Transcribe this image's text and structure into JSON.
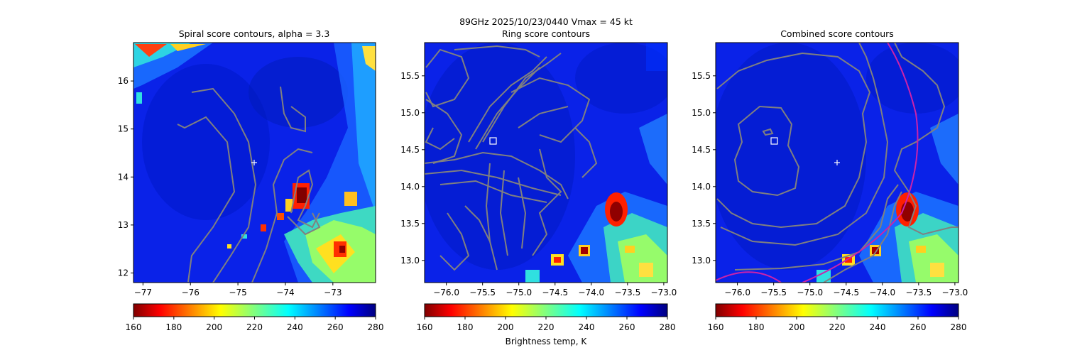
{
  "suptitle_line1": "89GHz  2025/10/23/0440    Vmax = 45 kt",
  "colorbar_label": "Brightness temp, K",
  "colorbar_ticks": [
    "160",
    "180",
    "200",
    "220",
    "240",
    "260",
    "280"
  ],
  "colors": {
    "colormap": "jet_r",
    "contour": "#808080",
    "fit_circle": "#cc22aa",
    "markers": "#ffffff"
  },
  "chart_data": [
    {
      "type": "heatmap",
      "title": "Spiral score contours, alpha =  3.3",
      "xlabel": "",
      "ylabel": "",
      "x_ticks": [
        "−77",
        "−76",
        "−75",
        "−74",
        "−73"
      ],
      "y_ticks": [
        "12",
        "13",
        "14",
        "15",
        "16"
      ],
      "xlim": [
        -77.2,
        -72.1
      ],
      "ylim": [
        11.8,
        16.8
      ],
      "x_tick_values": [
        -77,
        -76,
        -75,
        -74,
        -73
      ],
      "y_tick_values": [
        12,
        13,
        14,
        15,
        16
      ],
      "center_marker": {
        "symbol": "+",
        "x": -74.6,
        "y": 14.3
      },
      "colorbar": {
        "min": 160,
        "max": 280,
        "cmap": "jet_r"
      },
      "contours": "spiral score contours (gray)"
    },
    {
      "type": "heatmap",
      "title": "Ring score contours",
      "xlabel": "",
      "ylabel": "",
      "x_ticks": [
        "−76.0",
        "−75.5",
        "−75.0",
        "−74.5",
        "−74.0",
        "−73.5",
        "−73.0"
      ],
      "y_ticks": [
        "13.0",
        "13.5",
        "14.0",
        "14.5",
        "15.0",
        "15.5"
      ],
      "xlim": [
        -76.3,
        -72.95
      ],
      "ylim": [
        12.7,
        15.95
      ],
      "x_tick_values": [
        -76.0,
        -75.5,
        -75.0,
        -74.5,
        -74.0,
        -73.5,
        -73.0
      ],
      "y_tick_values": [
        13.0,
        13.5,
        14.0,
        14.5,
        15.0,
        15.5
      ],
      "center_marker": {
        "symbol": "square",
        "x": -75.3,
        "y": 14.6
      },
      "colorbar": {
        "min": 160,
        "max": 280,
        "cmap": "jet_r"
      },
      "contours": "ring score contours (gray)"
    },
    {
      "type": "heatmap",
      "title": "Combined score contours",
      "xlabel": "",
      "ylabel": "",
      "x_ticks": [
        "−76.0",
        "−75.5",
        "−75.0",
        "−74.5",
        "−74.0",
        "−73.5",
        "−73.0"
      ],
      "y_ticks": [
        "13.0",
        "13.5",
        "14.0",
        "14.5",
        "15.0",
        "15.5"
      ],
      "xlim": [
        -76.3,
        -72.95
      ],
      "ylim": [
        12.7,
        15.95
      ],
      "x_tick_values": [
        -76.0,
        -75.5,
        -75.0,
        -74.5,
        -74.0,
        -73.5,
        -73.0
      ],
      "y_tick_values": [
        13.0,
        13.5,
        14.0,
        14.5,
        15.0,
        15.5
      ],
      "center_markers": [
        {
          "symbol": "square",
          "x": -75.5,
          "y": 14.6
        },
        {
          "symbol": "+",
          "x": -74.65,
          "y": 14.3
        }
      ],
      "colorbar": {
        "min": 160,
        "max": 280,
        "cmap": "jet_r"
      },
      "contours": "combined score contours (gray) with magenta fitted circle"
    }
  ]
}
